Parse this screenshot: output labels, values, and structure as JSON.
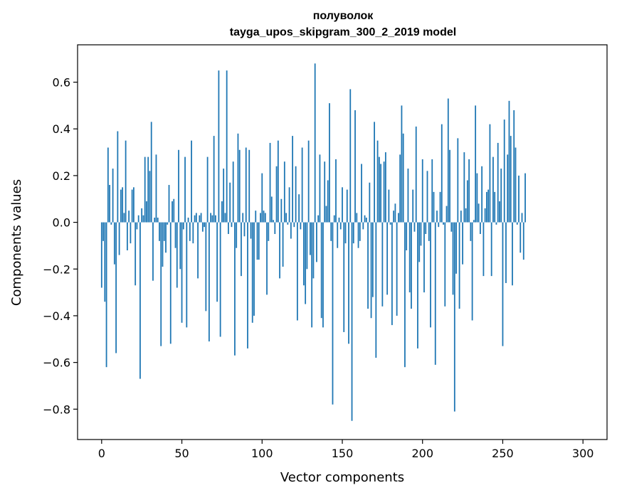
{
  "chart_data": {
    "type": "bar",
    "title_lines": [
      "полуволок",
      "tayga_upos_skipgram_300_2_2019 model"
    ],
    "xlabel": "Vector components",
    "ylabel": "Components values",
    "xlim": [
      -15,
      315
    ],
    "ylim": [
      -0.93,
      0.76
    ],
    "xticks": [
      0,
      50,
      100,
      150,
      200,
      250,
      300
    ],
    "yticks": [
      -0.8,
      -0.6,
      -0.4,
      -0.2,
      0.0,
      0.2,
      0.4,
      0.6
    ],
    "ytick_labels": [
      "−0.8",
      "−0.6",
      "−0.4",
      "−0.2",
      "0.0",
      "0.2",
      "0.4",
      "0.6"
    ],
    "grid": false,
    "bar_color": "#1f77b4",
    "values": [
      -0.28,
      -0.08,
      -0.34,
      -0.62,
      0.32,
      0.16,
      -0.01,
      0.23,
      -0.18,
      -0.56,
      0.39,
      -0.14,
      0.14,
      0.15,
      0.04,
      0.35,
      -0.12,
      0.05,
      -0.09,
      0.14,
      0.15,
      -0.27,
      -0.03,
      0.03,
      -0.67,
      0.06,
      0.03,
      0.28,
      0.09,
      0.28,
      0.22,
      0.43,
      -0.25,
      0.02,
      0.29,
      0.02,
      -0.08,
      -0.53,
      -0.19,
      -0.08,
      -0.13,
      -0.01,
      0.16,
      -0.52,
      0.09,
      0.1,
      -0.11,
      -0.28,
      0.31,
      -0.2,
      -0.43,
      -0.03,
      0.28,
      -0.45,
      0.02,
      -0.08,
      0.35,
      -0.09,
      0.03,
      0.04,
      -0.24,
      0.03,
      0.04,
      -0.04,
      -0.02,
      -0.38,
      0.28,
      -0.51,
      0.04,
      0.03,
      0.37,
      0.03,
      -0.34,
      0.65,
      -0.49,
      0.09,
      0.23,
      0.04,
      0.65,
      -0.05,
      0.17,
      -0.02,
      0.26,
      -0.57,
      -0.11,
      0.38,
      0.31,
      -0.23,
      0.04,
      -0.06,
      0.32,
      -0.54,
      0.31,
      -0.07,
      -0.43,
      -0.4,
      0.05,
      -0.16,
      -0.16,
      0.04,
      0.21,
      0.05,
      0.04,
      -0.31,
      -0.08,
      0.34,
      0.11,
      0.01,
      -0.05,
      0.24,
      0.35,
      -0.24,
      0.1,
      -0.19,
      0.26,
      0.04,
      -0.01,
      0.15,
      -0.07,
      0.37,
      -0.02,
      0.24,
      -0.42,
      0.12,
      -0.03,
      0.32,
      -0.27,
      -0.35,
      -0.2,
      0.35,
      -0.14,
      -0.45,
      -0.24,
      0.68,
      -0.17,
      0.03,
      0.29,
      -0.41,
      -0.45,
      0.26,
      0.07,
      0.18,
      0.51,
      -0.08,
      -0.78,
      0.03,
      0.27,
      -0.11,
      0.02,
      -0.03,
      0.15,
      -0.47,
      -0.09,
      0.14,
      -0.52,
      0.57,
      -0.85,
      -0.09,
      0.48,
      0.04,
      -0.11,
      -0.08,
      0.25,
      -0.03,
      0.03,
      0.02,
      -0.37,
      0.17,
      -0.41,
      -0.32,
      0.43,
      -0.58,
      0.35,
      0.28,
      0.25,
      -0.36,
      0.26,
      0.3,
      -0.31,
      0.14,
      -0.01,
      -0.44,
      0.05,
      0.08,
      -0.4,
      0.04,
      0.29,
      0.5,
      0.38,
      -0.62,
      -0.12,
      0.23,
      -0.3,
      -0.37,
      0.14,
      -0.04,
      0.41,
      -0.54,
      -0.17,
      -0.1,
      0.27,
      -0.3,
      -0.05,
      0.22,
      -0.08,
      -0.45,
      0.27,
      0.13,
      -0.61,
      0.05,
      -0.02,
      0.13,
      0.42,
      -0.01,
      -0.36,
      0.07,
      0.53,
      0.31,
      -0.04,
      -0.31,
      -0.81,
      -0.22,
      0.36,
      -0.37,
      0.05,
      -0.18,
      0.3,
      0.06,
      0.18,
      0.27,
      -0.08,
      -0.42,
      0.01,
      0.5,
      0.21,
      0.08,
      -0.05,
      0.24,
      -0.23,
      0.06,
      0.13,
      0.14,
      0.42,
      -0.23,
      0.28,
      0.13,
      -0.01,
      0.34,
      0.09,
      0.23,
      -0.53,
      0.44,
      -0.26,
      0.29,
      0.52,
      0.37,
      -0.27,
      0.48,
      0.32,
      -0.01,
      0.2,
      -0.13,
      0.04,
      -0.16,
      0.21
    ]
  }
}
